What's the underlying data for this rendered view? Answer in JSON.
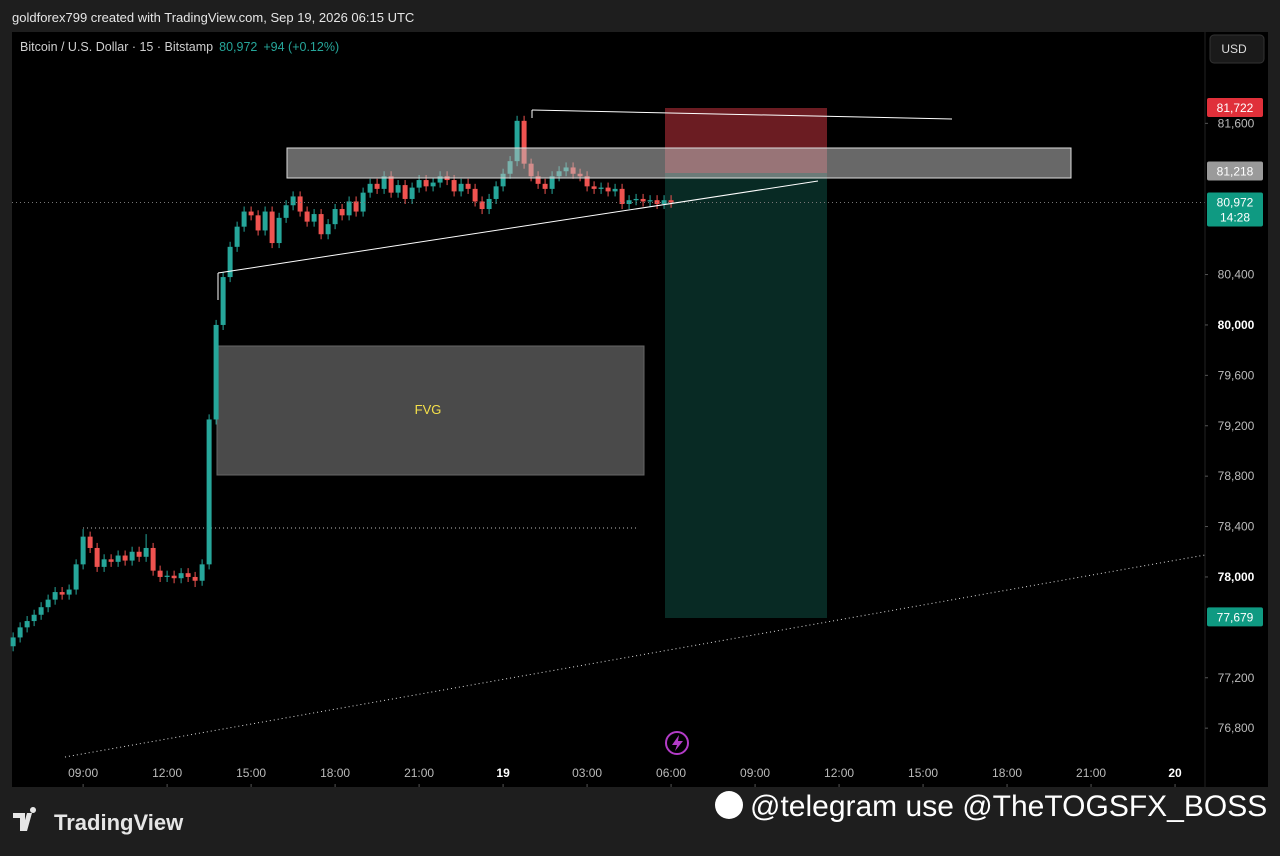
{
  "header": {
    "credit": "goldforex799 created with TradingView.com, Sep 19, 2026 06:15 UTC",
    "symbol": "Bitcoin / U.S. Dollar · 15 · Bitstamp",
    "last": "80,972",
    "change": "+94 (+0.12%)",
    "currency": "USD"
  },
  "footer": {
    "brand": "TradingView",
    "watermark": "@telegram use @TheTOGSFX_BOSS"
  },
  "annotations": {
    "fvg": "FVG"
  },
  "chart_data": {
    "type": "candlestick",
    "xlim": [
      6.46,
      49.07
    ],
    "ylim": [
      76333,
      82325
    ],
    "xticks": [
      {
        "value": 9,
        "label": "09:00"
      },
      {
        "value": 12,
        "label": "12:00"
      },
      {
        "value": 15,
        "label": "15:00"
      },
      {
        "value": 18,
        "label": "18:00"
      },
      {
        "value": 21,
        "label": "21:00"
      },
      {
        "value": 24,
        "label": "19"
      },
      {
        "value": 27,
        "label": "03:00"
      },
      {
        "value": 30,
        "label": "06:00"
      },
      {
        "value": 33,
        "label": "09:00"
      },
      {
        "value": 36,
        "label": "12:00"
      },
      {
        "value": 39,
        "label": "15:00"
      },
      {
        "value": 42,
        "label": "18:00"
      },
      {
        "value": 45,
        "label": "21:00"
      },
      {
        "value": 48,
        "label": "20"
      }
    ],
    "yticks": [
      {
        "value": 76800,
        "label": "76,800"
      },
      {
        "value": 77200,
        "label": "77,200"
      },
      {
        "value": 78000,
        "label": "78,000"
      },
      {
        "value": 78400,
        "label": "78,400"
      },
      {
        "value": 78800,
        "label": "78,800"
      },
      {
        "value": 79200,
        "label": "79,200"
      },
      {
        "value": 79600,
        "label": "79,600"
      },
      {
        "value": 80000,
        "label": "80,000"
      },
      {
        "value": 80400,
        "label": "80,400"
      },
      {
        "value": 81600,
        "label": "81,600"
      }
    ],
    "up_color": "#26a69a",
    "down_color": "#ef5350",
    "x": [
      6.5,
      6.75,
      7,
      7.25,
      7.5,
      7.75,
      8,
      8.25,
      8.5,
      8.75,
      9,
      9.25,
      9.5,
      9.75,
      10,
      10.25,
      10.5,
      10.75,
      11,
      11.25,
      11.5,
      11.75,
      12,
      12.25,
      12.5,
      12.75,
      13,
      13.25,
      13.5,
      13.75,
      14,
      14.25,
      14.5,
      14.75,
      15,
      15.25,
      15.5,
      15.75,
      16,
      16.25,
      16.5,
      16.75,
      17,
      17.25,
      17.5,
      17.75,
      18,
      18.25,
      18.5,
      18.75,
      19,
      19.25,
      19.5,
      19.75,
      20,
      20.25,
      20.5,
      20.75,
      21,
      21.25,
      21.5,
      21.75,
      22,
      22.25,
      22.5,
      22.75,
      23,
      23.25,
      23.5,
      23.75,
      24,
      24.25,
      24.5,
      24.75,
      25,
      25.25,
      25.5,
      25.75,
      26,
      26.25,
      26.5,
      26.75,
      27,
      27.25,
      27.5,
      27.75,
      28,
      28.25,
      28.5,
      28.75,
      29,
      29.25,
      29.5,
      29.75,
      30
    ],
    "open": [
      77450,
      77520,
      77600,
      77650,
      77700,
      77760,
      77820,
      77880,
      77860,
      77900,
      78100,
      78320,
      78230,
      78080,
      78140,
      78120,
      78170,
      78130,
      78200,
      78160,
      78230,
      78050,
      78000,
      78010,
      77990,
      78030,
      78000,
      77970,
      78100,
      79250,
      80000,
      80380,
      80620,
      80780,
      80900,
      80870,
      80750,
      80900,
      80650,
      80850,
      80950,
      81020,
      80900,
      80820,
      80880,
      80720,
      80800,
      80920,
      80870,
      80980,
      80900,
      81050,
      81120,
      81080,
      81180,
      81050,
      81110,
      81000,
      81090,
      81150,
      81100,
      81130,
      81180,
      81150,
      81060,
      81120,
      81080,
      80980,
      80920,
      81000,
      81100,
      81200,
      81300,
      81620,
      81280,
      81180,
      81120,
      81080,
      81180,
      81220,
      81250,
      81200,
      81180,
      81100,
      81080,
      81090,
      81060,
      81080,
      80960,
      80990,
      81000,
      80980,
      80990,
      80960,
      80990
    ],
    "high": [
      77560,
      77640,
      77690,
      77740,
      77800,
      77860,
      77920,
      77920,
      77940,
      78140,
      78380,
      78360,
      78270,
      78180,
      78180,
      78210,
      78210,
      78240,
      78240,
      78340,
      78270,
      78090,
      78050,
      78050,
      78070,
      78070,
      78040,
      78140,
      79290,
      80040,
      80420,
      80660,
      80820,
      80940,
      80940,
      80910,
      80940,
      80940,
      80890,
      80990,
      81060,
      81060,
      80940,
      80920,
      80920,
      80840,
      80960,
      80960,
      81020,
      81020,
      81090,
      81160,
      81160,
      81220,
      81220,
      81150,
      81150,
      81130,
      81190,
      81190,
      81170,
      81220,
      81220,
      81190,
      81160,
      81160,
      81120,
      81020,
      81040,
      81140,
      81240,
      81340,
      81660,
      81660,
      81320,
      81220,
      81160,
      81220,
      81260,
      81290,
      81290,
      81240,
      81220,
      81140,
      81130,
      81130,
      81120,
      81120,
      81030,
      81040,
      81040,
      81030,
      81030,
      81030,
      81030
    ],
    "low": [
      77410,
      77480,
      77560,
      77610,
      77660,
      77720,
      77780,
      77820,
      77820,
      77860,
      78060,
      78190,
      78040,
      78040,
      78080,
      78080,
      78090,
      78090,
      78120,
      78120,
      78010,
      77960,
      77960,
      77950,
      77950,
      77960,
      77920,
      77930,
      78060,
      79210,
      79960,
      80340,
      80580,
      80740,
      80830,
      80710,
      80710,
      80610,
      80610,
      80810,
      80910,
      80860,
      80780,
      80780,
      80680,
      80680,
      80760,
      80830,
      80830,
      80860,
      80860,
      81010,
      81040,
      81040,
      81010,
      81010,
      80960,
      80960,
      81050,
      81060,
      81060,
      81090,
      81110,
      81020,
      81020,
      81040,
      80940,
      80880,
      80880,
      80960,
      81060,
      81160,
      81260,
      81240,
      81140,
      81080,
      81040,
      81040,
      81140,
      81180,
      81160,
      81140,
      81060,
      81040,
      81040,
      81020,
      81020,
      80920,
      80920,
      80950,
      80940,
      80940,
      80920,
      80920,
      80930
    ],
    "close": [
      77520,
      77600,
      77650,
      77700,
      77760,
      77820,
      77880,
      77860,
      77900,
      78100,
      78320,
      78230,
      78080,
      78140,
      78120,
      78170,
      78130,
      78200,
      78160,
      78230,
      78050,
      78000,
      78010,
      77990,
      78030,
      78000,
      77970,
      78100,
      79250,
      80000,
      80380,
      80620,
      80780,
      80900,
      80870,
      80750,
      80900,
      80650,
      80850,
      80950,
      81020,
      80900,
      80820,
      80880,
      80720,
      80800,
      80920,
      80870,
      80980,
      80900,
      81050,
      81120,
      81080,
      81180,
      81050,
      81110,
      81000,
      81090,
      81150,
      81100,
      81130,
      81180,
      81150,
      81060,
      81120,
      81080,
      80980,
      80920,
      81000,
      81100,
      81200,
      81300,
      81620,
      81280,
      81180,
      81120,
      81080,
      81180,
      81220,
      81250,
      81200,
      81180,
      81100,
      81080,
      81090,
      81060,
      81080,
      80960,
      80990,
      81000,
      80980,
      80990,
      80960,
      80990,
      80972
    ],
    "price_labels": [
      {
        "value": 81722,
        "label": "81,722",
        "color": "#e0303a"
      },
      {
        "value": 81218,
        "label": "81,218",
        "color": "#9a9a9a"
      },
      {
        "value": 80972,
        "label": "80,972",
        "sub": "14:28",
        "color": "#0f9a82"
      },
      {
        "value": 77679,
        "label": "77,679",
        "color": "#0f9a82"
      }
    ]
  }
}
